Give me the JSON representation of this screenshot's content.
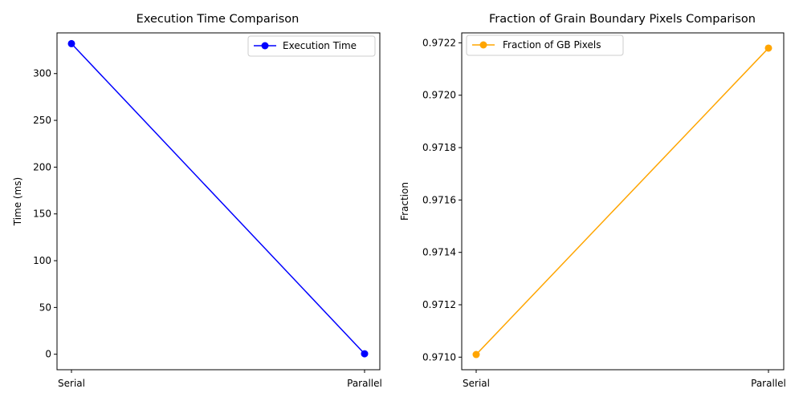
{
  "chart_data": [
    {
      "type": "line",
      "title": "Execution Time Comparison",
      "xlabel": "",
      "ylabel": "Time (ms)",
      "categories": [
        "Serial",
        "Parallel"
      ],
      "series": [
        {
          "name": "Execution Time",
          "values": [
            332,
            0.5
          ],
          "color": "#0000ff"
        }
      ],
      "ylim": [
        -16.55,
        343.5
      ],
      "yticks": [
        0,
        50,
        100,
        150,
        200,
        250,
        300
      ],
      "ytick_labels": [
        "0",
        "50",
        "100",
        "150",
        "200",
        "250",
        "300"
      ],
      "legend": "top-right",
      "grid": false
    },
    {
      "type": "line",
      "title": "Fraction of Grain Boundary Pixels Comparison",
      "xlabel": "",
      "ylabel": "Fraction",
      "categories": [
        "Serial",
        "Parallel"
      ],
      "series": [
        {
          "name": "Fraction of GB Pixels",
          "values": [
            0.97101,
            0.97218
          ],
          "color": "#ffa500"
        }
      ],
      "ylim": [
        0.970952,
        0.972238
      ],
      "yticks": [
        0.971,
        0.9712,
        0.9714,
        0.9716,
        0.9718,
        0.972,
        0.9722
      ],
      "ytick_labels": [
        "0.9710",
        "0.9712",
        "0.9714",
        "0.9716",
        "0.9718",
        "0.9720",
        "0.9722"
      ],
      "legend": "top-left",
      "grid": false
    }
  ]
}
